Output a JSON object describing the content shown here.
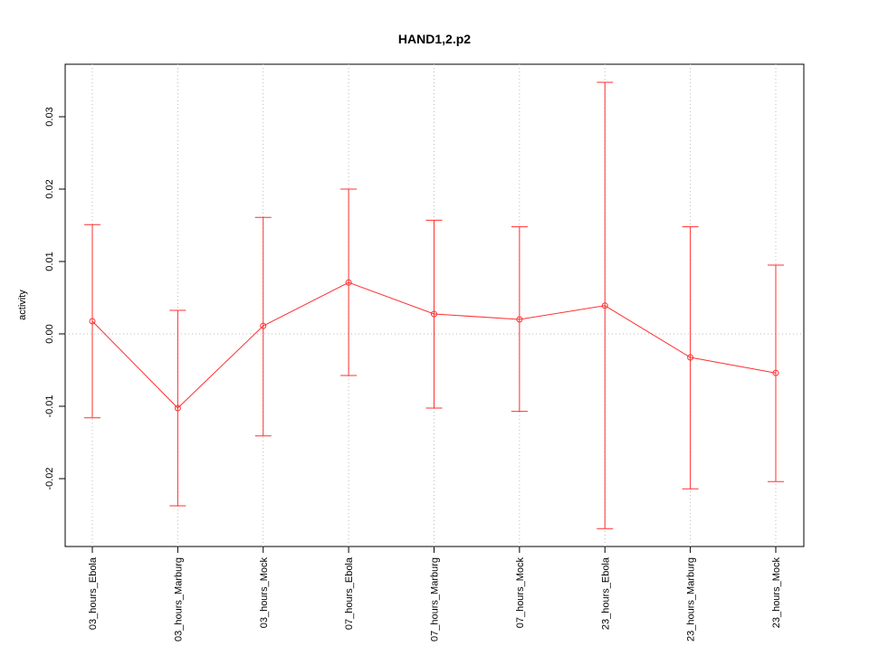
{
  "chart_data": {
    "type": "errorbar_line",
    "title": "HAND1,2.p2",
    "y_label": "activity",
    "categories": [
      "03_hours_Ebola",
      "03_hours_Marburg",
      "03_hours_Mock",
      "07_hours_Ebola",
      "07_hours_Marburg",
      "07_hours_Mock",
      "23_hours_Ebola",
      "23_hours_Marburg",
      "23_hours_Mock"
    ],
    "values": [
      0.00175,
      -0.01025,
      0.0011,
      0.0071,
      0.00275,
      0.002,
      0.0039,
      -0.00325,
      -0.0054
    ],
    "lower": [
      -0.0116,
      -0.02375,
      -0.0141,
      -0.00575,
      -0.01025,
      -0.0107,
      -0.0269,
      -0.0214,
      -0.0204
    ],
    "upper": [
      0.0151,
      0.00325,
      0.0161,
      0.02,
      0.0157,
      0.0148,
      0.03475,
      0.0148,
      0.0095
    ],
    "color": "#ff3030",
    "ylim": [
      -0.029375,
      0.03725
    ],
    "yticks": [
      -0.02,
      -0.01,
      {
        "value": 0,
        "label": "0.00"
      },
      0.01,
      0.02,
      0.03
    ],
    "reference_line": 0,
    "grid": true
  }
}
